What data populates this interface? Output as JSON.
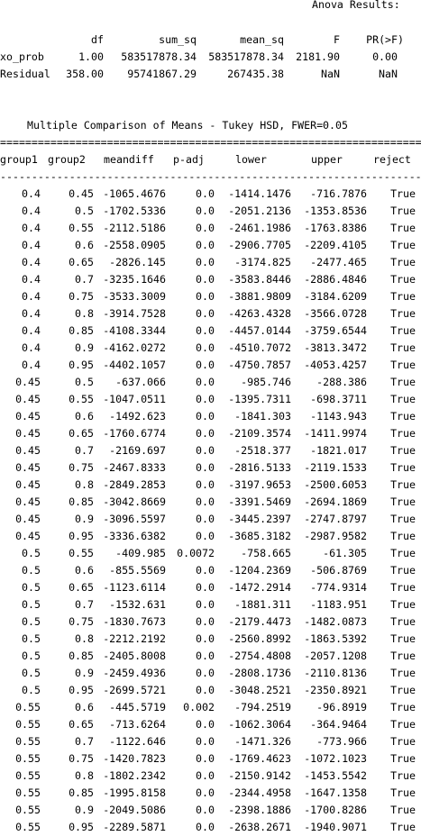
{
  "anova": {
    "title": "Anova Results:",
    "headers": [
      "df",
      "sum_sq",
      "mean_sq",
      "F",
      "PR(>F)"
    ],
    "rows": [
      {
        "name": "xo_prob",
        "df": "1.00",
        "sum_sq": "583517878.34",
        "mean_sq": "583517878.34",
        "F": "2181.90",
        "pr": "0.00"
      },
      {
        "name": "Residual",
        "df": "358.00",
        "sum_sq": "95741867.29",
        "mean_sq": "267435.38",
        "F": "NaN",
        "pr": "NaN"
      }
    ]
  },
  "tukey": {
    "title": "Multiple Comparison of Means - Tukey HSD, FWER=0.05",
    "double_rule": "==============================================================================",
    "single_rule": "------------------------------------------------------------------------------",
    "headers": [
      "group1",
      "group2",
      "meandiff",
      "p-adj",
      "lower",
      "upper",
      "reject"
    ],
    "rows": [
      [
        "0.4",
        "0.45",
        "-1065.4676",
        "0.0",
        "-1414.1476",
        "-716.7876",
        "True"
      ],
      [
        "0.4",
        "0.5",
        "-1702.5336",
        "0.0",
        "-2051.2136",
        "-1353.8536",
        "True"
      ],
      [
        "0.4",
        "0.55",
        "-2112.5186",
        "0.0",
        "-2461.1986",
        "-1763.8386",
        "True"
      ],
      [
        "0.4",
        "0.6",
        "-2558.0905",
        "0.0",
        "-2906.7705",
        "-2209.4105",
        "True"
      ],
      [
        "0.4",
        "0.65",
        "-2826.145",
        "0.0",
        "-3174.825",
        "-2477.465",
        "True"
      ],
      [
        "0.4",
        "0.7",
        "-3235.1646",
        "0.0",
        "-3583.8446",
        "-2886.4846",
        "True"
      ],
      [
        "0.4",
        "0.75",
        "-3533.3009",
        "0.0",
        "-3881.9809",
        "-3184.6209",
        "True"
      ],
      [
        "0.4",
        "0.8",
        "-3914.7528",
        "0.0",
        "-4263.4328",
        "-3566.0728",
        "True"
      ],
      [
        "0.4",
        "0.85",
        "-4108.3344",
        "0.0",
        "-4457.0144",
        "-3759.6544",
        "True"
      ],
      [
        "0.4",
        "0.9",
        "-4162.0272",
        "0.0",
        "-4510.7072",
        "-3813.3472",
        "True"
      ],
      [
        "0.4",
        "0.95",
        "-4402.1057",
        "0.0",
        "-4750.7857",
        "-4053.4257",
        "True"
      ],
      [
        "0.45",
        "0.5",
        "-637.066",
        "0.0",
        "-985.746",
        "-288.386",
        "True"
      ],
      [
        "0.45",
        "0.55",
        "-1047.0511",
        "0.0",
        "-1395.7311",
        "-698.3711",
        "True"
      ],
      [
        "0.45",
        "0.6",
        "-1492.623",
        "0.0",
        "-1841.303",
        "-1143.943",
        "True"
      ],
      [
        "0.45",
        "0.65",
        "-1760.6774",
        "0.0",
        "-2109.3574",
        "-1411.9974",
        "True"
      ],
      [
        "0.45",
        "0.7",
        "-2169.697",
        "0.0",
        "-2518.377",
        "-1821.017",
        "True"
      ],
      [
        "0.45",
        "0.75",
        "-2467.8333",
        "0.0",
        "-2816.5133",
        "-2119.1533",
        "True"
      ],
      [
        "0.45",
        "0.8",
        "-2849.2853",
        "0.0",
        "-3197.9653",
        "-2500.6053",
        "True"
      ],
      [
        "0.45",
        "0.85",
        "-3042.8669",
        "0.0",
        "-3391.5469",
        "-2694.1869",
        "True"
      ],
      [
        "0.45",
        "0.9",
        "-3096.5597",
        "0.0",
        "-3445.2397",
        "-2747.8797",
        "True"
      ],
      [
        "0.45",
        "0.95",
        "-3336.6382",
        "0.0",
        "-3685.3182",
        "-2987.9582",
        "True"
      ],
      [
        "0.5",
        "0.55",
        "-409.985",
        "0.0072",
        "-758.665",
        "-61.305",
        "True"
      ],
      [
        "0.5",
        "0.6",
        "-855.5569",
        "0.0",
        "-1204.2369",
        "-506.8769",
        "True"
      ],
      [
        "0.5",
        "0.65",
        "-1123.6114",
        "0.0",
        "-1472.2914",
        "-774.9314",
        "True"
      ],
      [
        "0.5",
        "0.7",
        "-1532.631",
        "0.0",
        "-1881.311",
        "-1183.951",
        "True"
      ],
      [
        "0.5",
        "0.75",
        "-1830.7673",
        "0.0",
        "-2179.4473",
        "-1482.0873",
        "True"
      ],
      [
        "0.5",
        "0.8",
        "-2212.2192",
        "0.0",
        "-2560.8992",
        "-1863.5392",
        "True"
      ],
      [
        "0.5",
        "0.85",
        "-2405.8008",
        "0.0",
        "-2754.4808",
        "-2057.1208",
        "True"
      ],
      [
        "0.5",
        "0.9",
        "-2459.4936",
        "0.0",
        "-2808.1736",
        "-2110.8136",
        "True"
      ],
      [
        "0.5",
        "0.95",
        "-2699.5721",
        "0.0",
        "-3048.2521",
        "-2350.8921",
        "True"
      ],
      [
        "0.55",
        "0.6",
        "-445.5719",
        "0.002",
        "-794.2519",
        "-96.8919",
        "True"
      ],
      [
        "0.55",
        "0.65",
        "-713.6264",
        "0.0",
        "-1062.3064",
        "-364.9464",
        "True"
      ],
      [
        "0.55",
        "0.7",
        "-1122.646",
        "0.0",
        "-1471.326",
        "-773.966",
        "True"
      ],
      [
        "0.55",
        "0.75",
        "-1420.7823",
        "0.0",
        "-1769.4623",
        "-1072.1023",
        "True"
      ],
      [
        "0.55",
        "0.8",
        "-1802.2342",
        "0.0",
        "-2150.9142",
        "-1453.5542",
        "True"
      ],
      [
        "0.55",
        "0.85",
        "-1995.8158",
        "0.0",
        "-2344.4958",
        "-1647.1358",
        "True"
      ],
      [
        "0.55",
        "0.9",
        "-2049.5086",
        "0.0",
        "-2398.1886",
        "-1700.8286",
        "True"
      ],
      [
        "0.55",
        "0.95",
        "-2289.5871",
        "0.0",
        "-2638.2671",
        "-1940.9071",
        "True"
      ]
    ]
  }
}
